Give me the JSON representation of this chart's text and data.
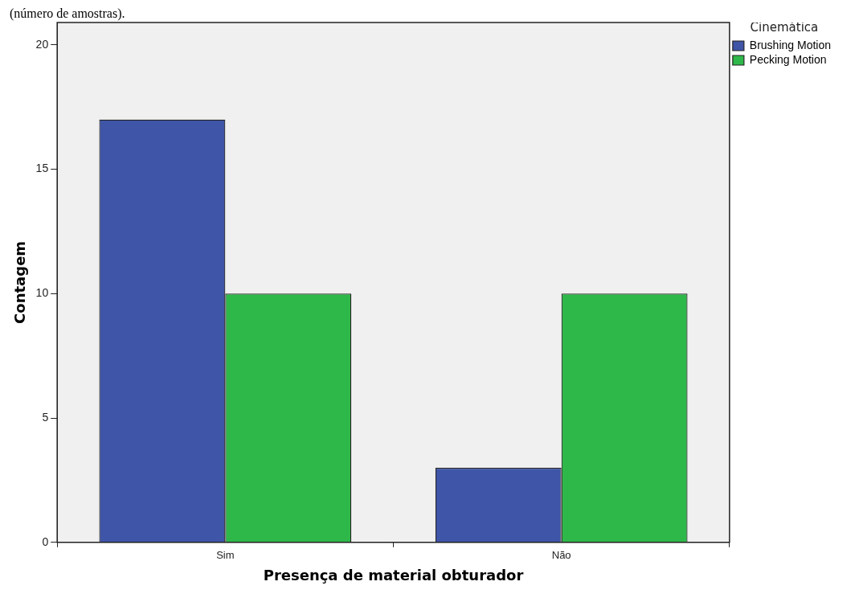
{
  "chart_data": {
    "type": "bar",
    "xlabel": "Presença de material obturador",
    "ylabel": "Contagem",
    "legend_title": "Cinemática",
    "annotations": [
      "(número de amostras)."
    ],
    "categories": [
      "Sim",
      "Não"
    ],
    "series": [
      {
        "name": "Brushing Motion",
        "color": "#3f55a7",
        "values": [
          17,
          3
        ]
      },
      {
        "name": "Pecking Motion",
        "color": "#2fb84a",
        "values": [
          10,
          10
        ]
      }
    ],
    "ylim": [
      0,
      20.9
    ],
    "yticks": [
      0,
      5,
      10,
      15,
      20
    ],
    "grid": false,
    "legend": "top right"
  }
}
